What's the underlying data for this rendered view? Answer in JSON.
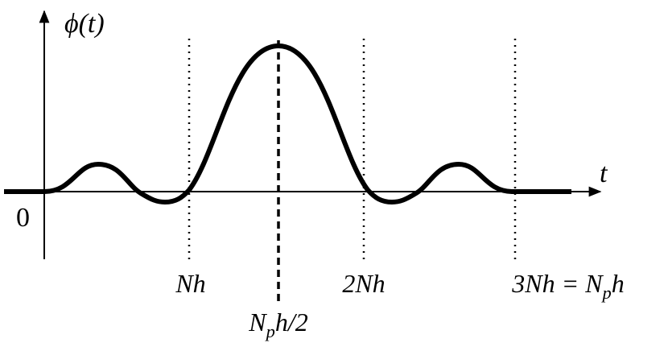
{
  "axes": {
    "y_label": "ϕ(t)",
    "x_label": "t",
    "origin": "0"
  },
  "markers": [
    {
      "parts": [
        {
          "text": "Nh"
        }
      ]
    },
    {
      "parts": [
        {
          "text": "2Nh"
        }
      ]
    },
    {
      "parts": [
        {
          "text": "3Nh = N"
        },
        {
          "text": "p",
          "sub": true
        },
        {
          "text": "h"
        }
      ]
    },
    {
      "parts": [
        {
          "text": "N"
        },
        {
          "text": "p",
          "sub": true
        },
        {
          "text": "h/2"
        }
      ]
    }
  ]
}
